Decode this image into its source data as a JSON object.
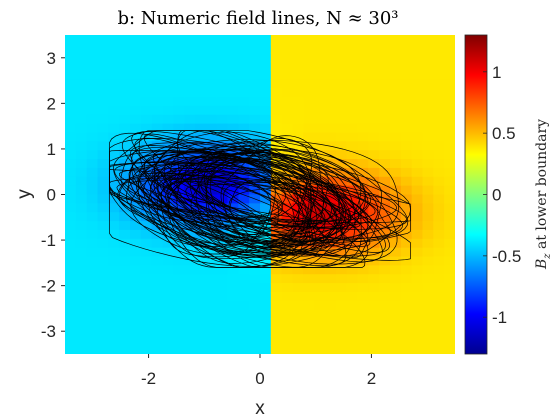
{
  "chart_data": {
    "type": "heatmap",
    "title": "b: Numeric field lines, N ≈ 30³",
    "xlabel": "x",
    "ylabel": "y",
    "xlim": [
      -3.5,
      3.5
    ],
    "ylim": [
      -3.5,
      3.5
    ],
    "xticks": [
      -2,
      0,
      2
    ],
    "xtick_labels": [
      "-2",
      "0",
      "2"
    ],
    "yticks": [
      3,
      2,
      1,
      0,
      -1,
      -2,
      -3
    ],
    "ytick_labels": [
      "3",
      "2",
      "1",
      "0",
      "-1",
      "-2",
      "-3"
    ],
    "grid": false,
    "colormap": "jet",
    "colorbar": {
      "label": "B_z at lower boundary",
      "label_main": "B",
      "label_sub": "z",
      "label_rest": " at lower boundary",
      "clim": [
        -1.3,
        1.3
      ],
      "ticks": [
        1,
        0.5,
        0,
        -0.5,
        -1
      ],
      "tick_labels": [
        "1",
        "0.5",
        "0",
        "-0.5",
        "-1"
      ],
      "location": "right"
    },
    "field": {
      "background_left": -0.38,
      "background_right": 0.38,
      "divider_x": 0.1,
      "pole_negative": {
        "x": -0.9,
        "y": 0.2,
        "peak": -1.1
      },
      "pole_positive": {
        "x": 1.1,
        "y": -0.4,
        "peak": 1.1
      }
    },
    "field_lines": {
      "color": "#000000",
      "count": 80,
      "x_range": [
        -2.7,
        2.7
      ],
      "y_range": [
        -1.6,
        1.4
      ]
    }
  }
}
